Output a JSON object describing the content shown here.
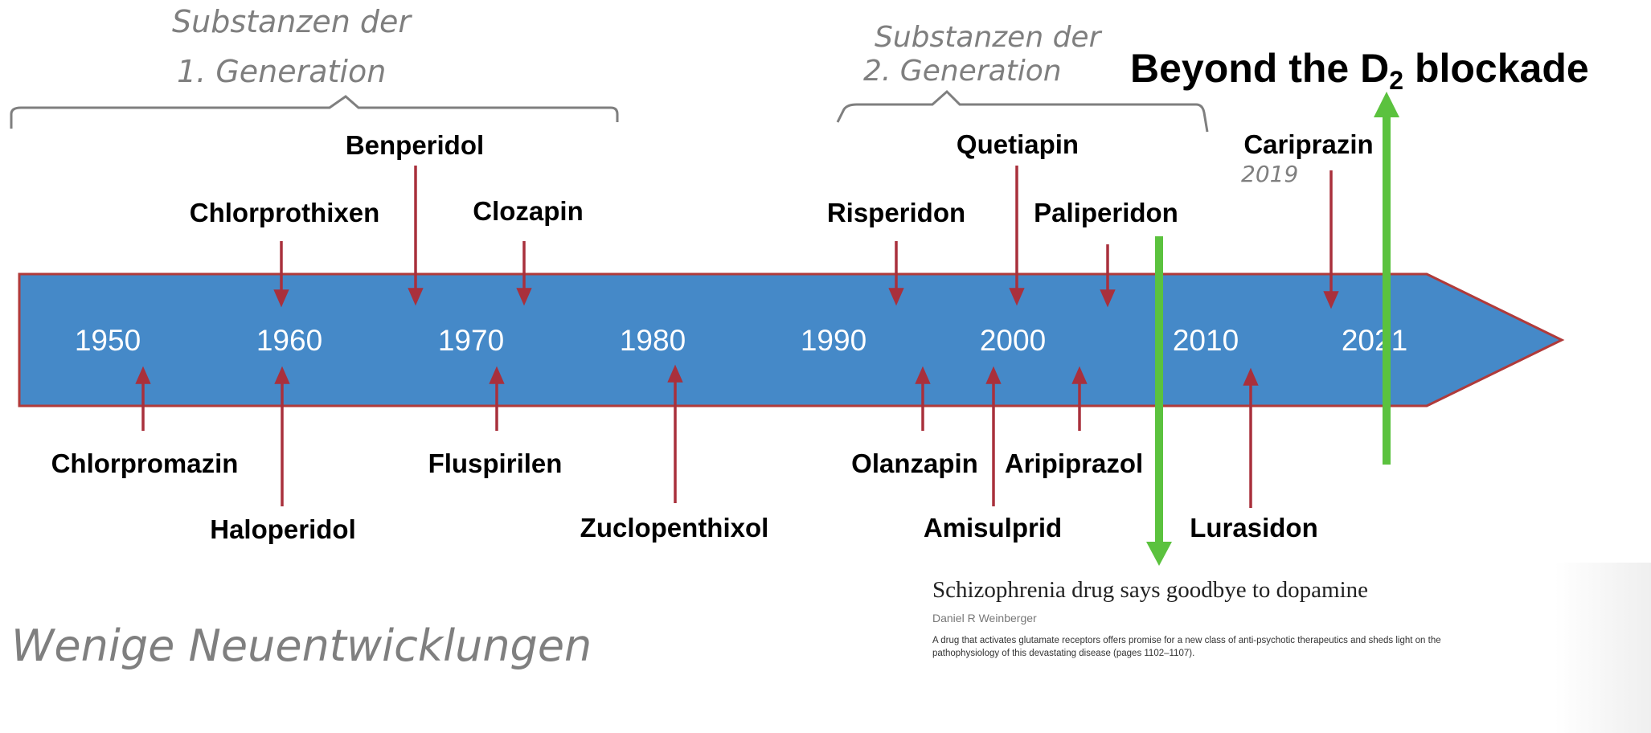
{
  "annotations": {
    "gen1_line1": "Substanzen der",
    "gen1_line2": "1. Generation",
    "gen2_line1": "Substanzen der",
    "gen2_line2": "2. Generation",
    "cariprazin_year": "2019",
    "bottom_note": "Wenige Neuentwicklungen"
  },
  "headline": {
    "prefix": "Beyond the D",
    "subscript": "2",
    "suffix": " blockade"
  },
  "timeline": {
    "years": [
      "1950",
      "1960",
      "1970",
      "1980",
      "1990",
      "2000",
      "2010",
      "2021"
    ],
    "drugs_above": [
      "Chlorprothixen",
      "Benperidol",
      "Clozapin",
      "Risperidon",
      "Quetiapin",
      "Paliperidon",
      "Cariprazin"
    ],
    "drugs_below": [
      "Chlorpromazin",
      "Haloperidol",
      "Fluspirilen",
      "Zuclopenthixol",
      "Olanzapin",
      "Amisulprid",
      "Aripiprazol",
      "Lurasidon"
    ]
  },
  "article": {
    "title": "Schizophrenia drug says goodbye to dopamine",
    "author": "Daniel R Weinberger",
    "abstract": "A drug that activates glutamate receptors offers promise for a new class of anti-psychotic therapeutics and sheds light on the pathophysiology of this devastating disease (pages 1102–1107)."
  },
  "colors": {
    "band_fill": "#4589c8",
    "band_stroke": "#b03a3a",
    "arrow": "#a9303c",
    "green": "#5bc23e",
    "handwriting": "#7f7f7f"
  }
}
